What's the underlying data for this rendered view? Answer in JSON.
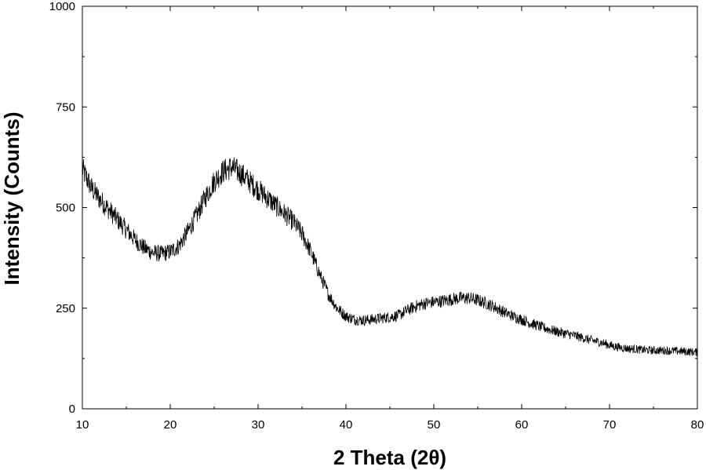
{
  "chart_data": {
    "type": "line",
    "title": "",
    "xlabel": "2 Theta (2θ)",
    "ylabel": "Intensity (Counts)",
    "xlim": [
      10,
      80
    ],
    "ylim": [
      0,
      1000
    ],
    "x_ticks": [
      10,
      20,
      30,
      40,
      50,
      60,
      70,
      80
    ],
    "y_ticks": [
      0,
      250,
      500,
      750,
      1000
    ],
    "grid": false,
    "legend": "none",
    "line_color": "#000000",
    "series": [
      {
        "x": [
          10,
          11,
          12,
          13,
          14,
          15,
          16,
          17,
          18,
          19,
          20,
          21,
          22,
          23,
          24,
          25,
          26,
          27,
          28,
          29,
          30,
          31,
          32,
          33,
          34,
          35,
          36,
          37,
          38,
          39,
          40,
          41,
          42,
          43,
          44,
          45,
          46,
          47,
          48,
          49,
          50,
          51,
          52,
          53,
          54,
          55,
          56,
          57,
          58,
          59,
          60,
          61,
          62,
          63,
          64,
          65,
          66,
          67,
          68,
          69,
          70,
          71,
          72,
          73,
          74,
          75,
          76,
          77,
          78,
          79,
          80
        ],
        "values": [
          595,
          550,
          520,
          495,
          470,
          445,
          420,
          400,
          388,
          385,
          390,
          405,
          440,
          480,
          525,
          565,
          590,
          600,
          585,
          565,
          545,
          525,
          505,
          485,
          465,
          435,
          390,
          335,
          285,
          250,
          230,
          222,
          220,
          222,
          225,
          228,
          232,
          245,
          255,
          262,
          265,
          268,
          272,
          275,
          275,
          270,
          262,
          252,
          240,
          230,
          222,
          213,
          205,
          198,
          192,
          187,
          182,
          176,
          170,
          165,
          158,
          153,
          150,
          148,
          146,
          145,
          145,
          144,
          143,
          142,
          140
        ]
      }
    ]
  }
}
